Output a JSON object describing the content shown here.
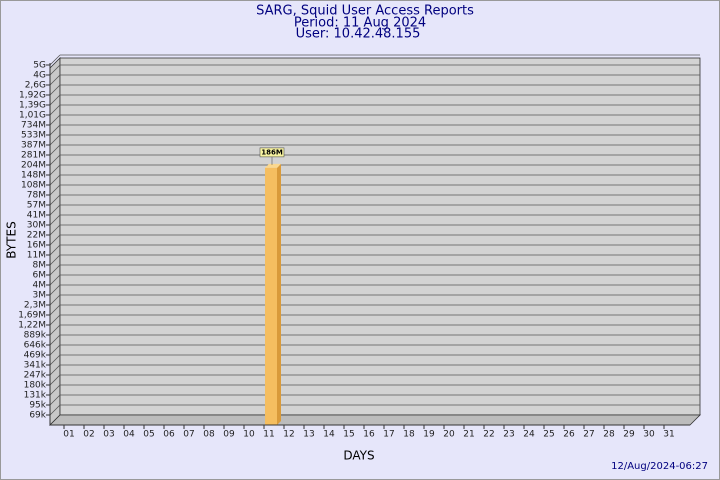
{
  "chart_data": {
    "type": "bar",
    "title": "SARG, Squid User Access Reports",
    "subtitle": "Period: 11 Aug 2024",
    "user": "User: 10.42.48.155",
    "x_label": "DAYS",
    "y_label": "BYTES",
    "footer": "12/Aug/2024-06:27",
    "color": "#f5be60",
    "scale": "log",
    "grid": true,
    "categories": [
      "01",
      "02",
      "03",
      "04",
      "05",
      "06",
      "07",
      "08",
      "09",
      "10",
      "11",
      "12",
      "13",
      "14",
      "15",
      "16",
      "17",
      "18",
      "19",
      "20",
      "21",
      "22",
      "23",
      "24",
      "25",
      "26",
      "27",
      "28",
      "29",
      "30",
      "31"
    ],
    "values": [
      null,
      null,
      null,
      null,
      null,
      null,
      null,
      null,
      null,
      null,
      186000000,
      null,
      null,
      null,
      null,
      null,
      null,
      null,
      null,
      null,
      null,
      null,
      null,
      null,
      null,
      null,
      null,
      null,
      null,
      null,
      null
    ],
    "value_labels": [
      null,
      null,
      null,
      null,
      null,
      null,
      null,
      null,
      null,
      null,
      "186M",
      null,
      null,
      null,
      null,
      null,
      null,
      null,
      null,
      null,
      null,
      null,
      null,
      null,
      null,
      null,
      null,
      null,
      null,
      null,
      null
    ],
    "ylim": [
      50000,
      5000000000
    ],
    "yticks": [
      {
        "value": 69000,
        "label": "69k"
      },
      {
        "value": 95000,
        "label": "95k"
      },
      {
        "value": 131000,
        "label": "131k"
      },
      {
        "value": 180000,
        "label": "180k"
      },
      {
        "value": 247000,
        "label": "247k"
      },
      {
        "value": 341000,
        "label": "341k"
      },
      {
        "value": 469000,
        "label": "469k"
      },
      {
        "value": 646000,
        "label": "646k"
      },
      {
        "value": 889000,
        "label": "889k"
      },
      {
        "value": 1220000,
        "label": "1,22M"
      },
      {
        "value": 1690000,
        "label": "1,69M"
      },
      {
        "value": 2300000,
        "label": "2,3M"
      },
      {
        "value": 3000000,
        "label": "3M"
      },
      {
        "value": 4000000,
        "label": "4M"
      },
      {
        "value": 6000000,
        "label": "6M"
      },
      {
        "value": 8000000,
        "label": "8M"
      },
      {
        "value": 11000000,
        "label": "11M"
      },
      {
        "value": 16000000,
        "label": "16M"
      },
      {
        "value": 22000000,
        "label": "22M"
      },
      {
        "value": 30000000,
        "label": "30M"
      },
      {
        "value": 41000000,
        "label": "41M"
      },
      {
        "value": 57000000,
        "label": "57M"
      },
      {
        "value": 78000000,
        "label": "78M"
      },
      {
        "value": 108000000,
        "label": "108M"
      },
      {
        "value": 148000000,
        "label": "148M"
      },
      {
        "value": 204000000,
        "label": "204M"
      },
      {
        "value": 281000000,
        "label": "281M"
      },
      {
        "value": 387000000,
        "label": "387M"
      },
      {
        "value": 533000000,
        "label": "533M"
      },
      {
        "value": 734000000,
        "label": "734M"
      },
      {
        "value": 1010000000,
        "label": "1,01G"
      },
      {
        "value": 1390000000,
        "label": "1,39G"
      },
      {
        "value": 1920000000,
        "label": "1,92G"
      },
      {
        "value": 2600000000,
        "label": "2,6G"
      },
      {
        "value": 4000000000,
        "label": "4G"
      },
      {
        "value": 5000000000,
        "label": "5G"
      }
    ]
  }
}
